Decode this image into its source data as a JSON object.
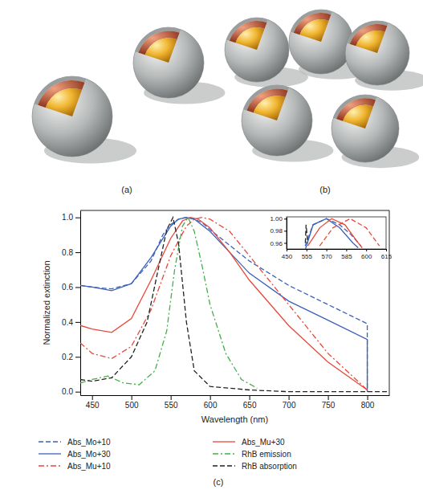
{
  "figure": {
    "panel_labels": [
      "(a)",
      "(b)",
      "(c)"
    ]
  },
  "chart_data": [
    {
      "type": "line",
      "xlabel": "Wavelength (nm)",
      "ylabel": "Normalized extinction",
      "xlim": [
        435,
        828
      ],
      "ylim": [
        -0.02,
        1.04
      ],
      "xticks": [
        450,
        500,
        550,
        600,
        650,
        700,
        750,
        800
      ],
      "yticks": [
        {
          "value": 0,
          "label": "0.0"
        },
        0.2,
        0.4,
        0.6,
        0.8,
        {
          "value": 1,
          "label": "1.0"
        }
      ],
      "grid": false,
      "legend": "bottom",
      "series": [
        {
          "name": "Abs_Mo+10",
          "color": "#3a62b8",
          "line_style": "dashed",
          "x": [
            435,
            450,
            475,
            500,
            525,
            540,
            550,
            560,
            570,
            580,
            590,
            600,
            625,
            650,
            700,
            750,
            800,
            800
          ],
          "values": [
            0.61,
            0.6,
            0.59,
            0.62,
            0.75,
            0.9,
            0.96,
            0.99,
            1.0,
            0.99,
            0.97,
            0.93,
            0.84,
            0.75,
            0.61,
            0.5,
            0.39,
            0.0
          ]
        },
        {
          "name": "Abs_Mo+30",
          "color": "#3a62b8",
          "line_style": "solid",
          "x": [
            435,
            450,
            475,
            500,
            525,
            550,
            560,
            570,
            580,
            600,
            625,
            650,
            700,
            750,
            800,
            800
          ],
          "values": [
            0.61,
            0.6,
            0.58,
            0.62,
            0.77,
            0.95,
            0.99,
            1.0,
            0.99,
            0.92,
            0.8,
            0.68,
            0.52,
            0.41,
            0.3,
            0.0
          ]
        },
        {
          "name": "Abs_Mu+10",
          "color": "#e8483a",
          "line_style": "dashdot",
          "x": [
            435,
            450,
            475,
            500,
            525,
            550,
            570,
            580,
            590,
            600,
            625,
            650,
            700,
            750,
            800
          ],
          "values": [
            0.28,
            0.22,
            0.19,
            0.26,
            0.47,
            0.78,
            0.95,
            0.99,
            1.0,
            0.99,
            0.92,
            0.78,
            0.5,
            0.22,
            0.01
          ]
        },
        {
          "name": "Abs_Mu+30",
          "color": "#e8483a",
          "line_style": "solid",
          "x": [
            435,
            450,
            475,
            500,
            525,
            550,
            565,
            575,
            585,
            600,
            625,
            650,
            700,
            750,
            800
          ],
          "values": [
            0.38,
            0.36,
            0.34,
            0.42,
            0.64,
            0.88,
            0.98,
            1.0,
            0.99,
            0.94,
            0.8,
            0.64,
            0.38,
            0.17,
            0.01
          ]
        },
        {
          "name": "RhB emission",
          "color": "#44b04a",
          "line_style": "dashdot",
          "x": [
            435,
            450,
            470,
            490,
            510,
            530,
            545,
            555,
            565,
            572,
            580,
            590,
            600,
            620,
            640,
            660
          ],
          "values": [
            0.05,
            0.07,
            0.09,
            0.05,
            0.04,
            0.12,
            0.35,
            0.7,
            0.95,
            1.0,
            0.92,
            0.72,
            0.5,
            0.22,
            0.07,
            0.02
          ]
        },
        {
          "name": "RhB absorption",
          "color": "#222222",
          "line_style": "dashed",
          "x": [
            435,
            450,
            475,
            500,
            520,
            535,
            545,
            553,
            560,
            570,
            580,
            600,
            650,
            700,
            800,
            825
          ],
          "values": [
            0.07,
            0.06,
            0.08,
            0.2,
            0.4,
            0.72,
            0.93,
            1.0,
            0.85,
            0.4,
            0.12,
            0.03,
            0.01,
            0.0,
            0.0,
            0.0
          ]
        }
      ]
    },
    {
      "type": "line",
      "xlim": [
        450,
        615
      ],
      "ylim": [
        0.95,
        1.003
      ],
      "xticks": [
        450,
        555,
        570,
        585,
        600,
        615
      ],
      "yticks": [
        0.96,
        0.98,
        {
          "value": 1,
          "label": "1.00"
        }
      ],
      "grid": false,
      "series": [
        {
          "name": "Abs_Mo+10",
          "color": "#3a62b8",
          "line_style": "dashed",
          "x": [
            548,
            560,
            570,
            580,
            588,
            596
          ],
          "values": [
            0.955,
            0.99,
            1.0,
            0.99,
            0.975,
            0.955
          ]
        },
        {
          "name": "Abs_Mo+30",
          "color": "#3a62b8",
          "line_style": "solid",
          "x": [
            550,
            560,
            570,
            580,
            590,
            594
          ],
          "values": [
            0.95,
            0.99,
            1.0,
            0.985,
            0.96,
            0.952
          ]
        },
        {
          "name": "Abs_Mu+10",
          "color": "#e8483a",
          "line_style": "dashed",
          "x": [
            565,
            575,
            588,
            600,
            610
          ],
          "values": [
            0.955,
            0.985,
            1.0,
            0.985,
            0.955
          ]
        },
        {
          "name": "Abs_Mu+30",
          "color": "#e8483a",
          "line_style": "solid",
          "x": [
            556,
            565,
            574,
            584,
            594,
            597
          ],
          "values": [
            0.955,
            0.985,
            1.0,
            0.99,
            0.96,
            0.952
          ]
        },
        {
          "name": "RhB absorption",
          "color": "#222222",
          "line_style": "dashed",
          "x": [
            549,
            553,
            556
          ],
          "values": [
            0.96,
            0.99,
            0.96
          ]
        }
      ]
    }
  ]
}
